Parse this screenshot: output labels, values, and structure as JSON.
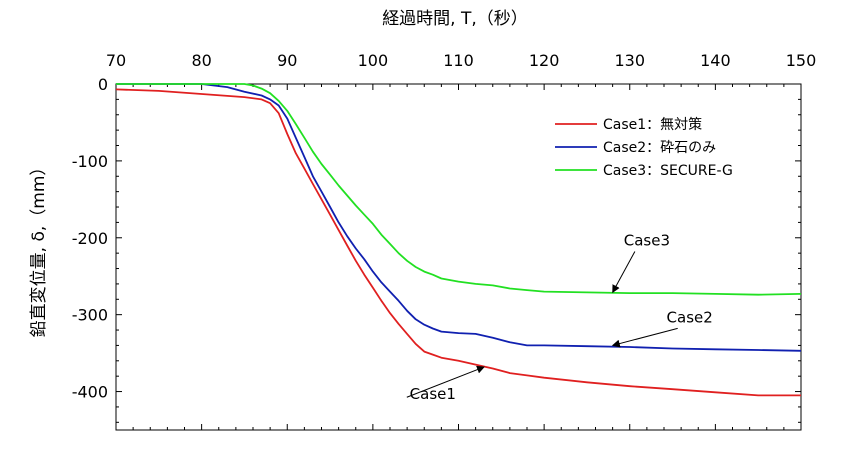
{
  "chart_data": {
    "type": "line",
    "xlabel": "経過時間, T,（秒）",
    "ylabel": "鉛直変位量, δ,（mm）",
    "xlim": [
      70,
      150
    ],
    "ylim": [
      -450,
      0
    ],
    "x_ticks": [
      70,
      80,
      90,
      100,
      110,
      120,
      130,
      140,
      150
    ],
    "y_ticks": [
      0,
      -100,
      -200,
      -300,
      -400
    ],
    "y_tick_labels": [
      "0",
      "-100",
      "-200",
      "-300",
      "-400"
    ],
    "x_axis_position": "top",
    "grid": false,
    "legend_position": "top-right",
    "series": [
      {
        "name": "Case1：無対策",
        "color": "#e02020",
        "x": [
          70,
          75,
          80,
          85,
          87,
          88,
          89,
          90,
          91,
          92,
          93,
          94,
          95,
          96,
          97,
          98,
          99,
          100,
          101,
          102,
          103,
          104,
          105,
          106,
          107,
          108,
          110,
          112,
          114,
          116,
          118,
          120,
          125,
          130,
          135,
          140,
          145,
          150
        ],
        "y": [
          -7,
          -9,
          -13,
          -17,
          -20,
          -25,
          -38,
          -65,
          -90,
          -110,
          -130,
          -150,
          -170,
          -190,
          -210,
          -230,
          -248,
          -265,
          -282,
          -298,
          -312,
          -325,
          -338,
          -348,
          -352,
          -356,
          -360,
          -365,
          -370,
          -376,
          -379,
          -382,
          -388,
          -393,
          -397,
          -401,
          -405,
          -405
        ]
      },
      {
        "name": "Case2：砕石のみ",
        "color": "#1020b0",
        "x": [
          70,
          75,
          80,
          83,
          85,
          87,
          88,
          89,
          90,
          91,
          92,
          93,
          94,
          95,
          96,
          97,
          98,
          99,
          100,
          101,
          102,
          103,
          104,
          105,
          106,
          107,
          108,
          110,
          112,
          114,
          116,
          118,
          120,
          125,
          130,
          135,
          140,
          145,
          150
        ],
        "y": [
          0,
          0,
          0,
          -4,
          -10,
          -15,
          -20,
          -28,
          -45,
          -70,
          -95,
          -120,
          -140,
          -160,
          -180,
          -198,
          -214,
          -228,
          -244,
          -258,
          -270,
          -282,
          -295,
          -306,
          -313,
          -318,
          -322,
          -324,
          -325,
          -330,
          -336,
          -340,
          -340,
          -341,
          -342,
          -344,
          -345,
          -346,
          -347
        ]
      },
      {
        "name": "Case3：SECURE-G",
        "color": "#22e022",
        "x": [
          70,
          75,
          80,
          85,
          86,
          87,
          88,
          89,
          90,
          91,
          92,
          93,
          94,
          95,
          96,
          97,
          98,
          99,
          100,
          101,
          102,
          103,
          104,
          105,
          106,
          107,
          108,
          110,
          112,
          114,
          116,
          118,
          120,
          125,
          130,
          135,
          140,
          145,
          150
        ],
        "y": [
          0,
          0,
          0,
          0,
          -2,
          -6,
          -12,
          -22,
          -35,
          -52,
          -70,
          -88,
          -104,
          -118,
          -132,
          -145,
          -158,
          -170,
          -182,
          -196,
          -208,
          -220,
          -230,
          -238,
          -244,
          -248,
          -253,
          -257,
          -260,
          -262,
          -266,
          -268,
          -270,
          -271,
          -272,
          -272,
          -273,
          -274,
          -273
        ]
      }
    ],
    "annotations": [
      {
        "text": "Case3",
        "x": 132,
        "y": -210,
        "target_x": 128,
        "target_y": -271
      },
      {
        "text": "Case2",
        "x": 137,
        "y": -310,
        "target_x": 128,
        "target_y": -340
      },
      {
        "text": "Case1",
        "x": 107,
        "y": -410,
        "target_x": 113,
        "target_y": -368
      }
    ]
  }
}
